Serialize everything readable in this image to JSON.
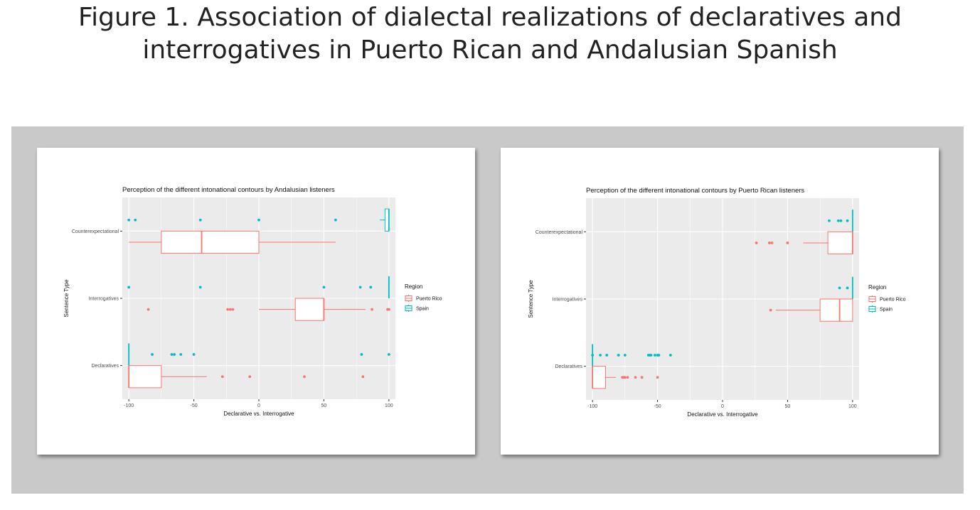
{
  "figure": {
    "title_line1": "Figure 1. Association of dialectal realizations of declaratives and",
    "title_line2": "interrogatives in Puerto Rican and Andalusian Spanish"
  },
  "colors": {
    "puerto_rico": "#f8766d",
    "spain": "#00bfc4",
    "panel_bg": "#ebebeb",
    "grid": "#ffffff",
    "outer_bg": "#c9c9c9"
  },
  "chart_data": [
    {
      "type": "boxplot",
      "title": "Perception of the different intonational contours by Andalusian listeners",
      "xlabel": "Declarative vs. Interrogative",
      "ylabel": "Sentence Type",
      "xlim": [
        -105,
        105
      ],
      "xticks": [
        -100,
        -50,
        0,
        50,
        100
      ],
      "categories": [
        "Declaratives",
        "Interrogatives",
        "Counterexpectational"
      ],
      "legend": {
        "title": "Region",
        "entries": [
          "Puerto Rico",
          "Spain"
        ],
        "position": "right"
      },
      "boxes": [
        {
          "category": "Counterexpectational",
          "group": "Spain",
          "min": 93,
          "q1": 97,
          "median": 100,
          "q3": 100,
          "max": 100,
          "outliers": [
            -100,
            -95,
            -45,
            0,
            59
          ]
        },
        {
          "category": "Counterexpectational",
          "group": "Puerto Rico",
          "min": -100,
          "q1": -75,
          "median": -44,
          "q3": 0,
          "max": 59,
          "outliers": []
        },
        {
          "category": "Interrogatives",
          "group": "Spain",
          "min": 100,
          "q1": 100,
          "median": 100,
          "q3": 100,
          "max": 100,
          "outliers": [
            -100,
            -45,
            50,
            78,
            86
          ]
        },
        {
          "category": "Interrogatives",
          "group": "Puerto Rico",
          "min": 0,
          "q1": 28,
          "median": 50,
          "q3": 50,
          "max": 82,
          "outliers": [
            -85,
            -24,
            -22,
            -20,
            87,
            99,
            100
          ]
        },
        {
          "category": "Declaratives",
          "group": "Spain",
          "min": -100,
          "q1": -100,
          "median": -100,
          "q3": -100,
          "max": -100,
          "outliers": [
            -82,
            -67,
            -65,
            -60,
            -50,
            79,
            100
          ]
        },
        {
          "category": "Declaratives",
          "group": "Puerto Rico",
          "min": -100,
          "q1": -100,
          "median": -100,
          "q3": -75,
          "max": -40,
          "outliers": [
            -28,
            -7,
            35,
            80
          ]
        }
      ]
    },
    {
      "type": "boxplot",
      "title": "Perception of the different intonational contours by Puerto Rican listeners",
      "xlabel": "Declarative vs. Interrogative",
      "ylabel": "Sentence Type",
      "xlim": [
        -105,
        105
      ],
      "xticks": [
        -100,
        -50,
        0,
        50,
        100
      ],
      "categories": [
        "Declaratives",
        "Interrogatives",
        "Counterexpectational"
      ],
      "legend": {
        "title": "Region",
        "entries": [
          "Puerto Rico",
          "Spain"
        ],
        "position": "right"
      },
      "boxes": [
        {
          "category": "Counterexpectational",
          "group": "Spain",
          "min": 100,
          "q1": 100,
          "median": 100,
          "q3": 100,
          "max": 100,
          "outliers": [
            82,
            89,
            91,
            96
          ]
        },
        {
          "category": "Counterexpectational",
          "group": "Puerto Rico",
          "min": 62,
          "q1": 81,
          "median": 100,
          "q3": 100,
          "max": 100,
          "outliers": [
            26,
            36,
            38,
            50
          ]
        },
        {
          "category": "Interrogatives",
          "group": "Spain",
          "min": 100,
          "q1": 100,
          "median": 100,
          "q3": 100,
          "max": 100,
          "outliers": [
            90,
            96
          ]
        },
        {
          "category": "Interrogatives",
          "group": "Puerto Rico",
          "min": 41,
          "q1": 75,
          "median": 90,
          "q3": 100,
          "max": 100,
          "outliers": [
            37
          ]
        },
        {
          "category": "Declaratives",
          "group": "Spain",
          "min": -100,
          "q1": -100,
          "median": -100,
          "q3": -100,
          "max": -100,
          "outliers": [
            -100,
            -94,
            -89,
            -80,
            -75,
            -57,
            -56,
            -55,
            -52,
            -50,
            -49,
            -40
          ]
        },
        {
          "category": "Declaratives",
          "group": "Puerto Rico",
          "min": -100,
          "q1": -100,
          "median": -100,
          "q3": -90,
          "max": -82,
          "outliers": [
            -77,
            -76,
            -75,
            -73,
            -67,
            -62,
            -50
          ]
        }
      ]
    }
  ]
}
